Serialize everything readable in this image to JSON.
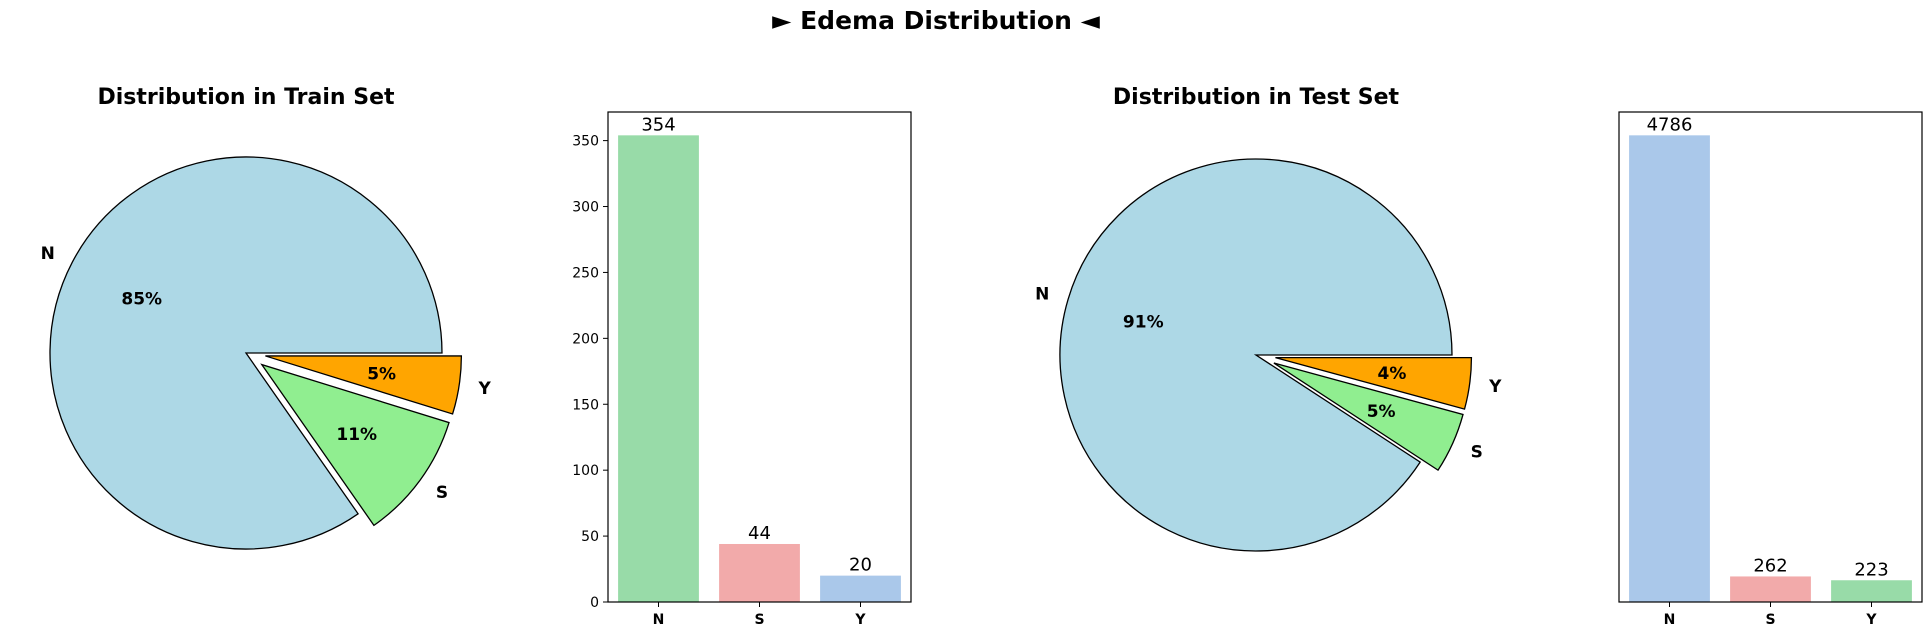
{
  "figure": {
    "suptitle": "► Edema Distribution ◄"
  },
  "chart_data": [
    {
      "type": "pie",
      "title": "Distribution in Train Set",
      "labels": [
        "N",
        "S",
        "Y"
      ],
      "values": [
        354,
        44,
        20
      ],
      "pct_labels": [
        "85%",
        "11%",
        "5%"
      ],
      "colors": [
        "#add8e6",
        "#90ee90",
        "#ffa500"
      ],
      "explode": [
        0,
        0.1,
        0.1
      ]
    },
    {
      "type": "bar",
      "categories": [
        "N",
        "S",
        "Y"
      ],
      "values": [
        354,
        44,
        20
      ],
      "data_labels": [
        "354",
        "44",
        "20"
      ],
      "colors": [
        "#98dba8",
        "#f2aaaa",
        "#aac8ea"
      ],
      "ylim": [
        0,
        371.7
      ],
      "yticks": [
        0,
        50,
        100,
        150,
        200,
        250,
        300,
        350
      ],
      "show_yticks": true,
      "xlabel": "",
      "ylabel": ""
    },
    {
      "type": "pie",
      "title": "Distribution in Test Set",
      "labels": [
        "N",
        "S",
        "Y"
      ],
      "values": [
        4786,
        262,
        223
      ],
      "pct_labels": [
        "91%",
        "5%",
        "4%"
      ],
      "colors": [
        "#add8e6",
        "#90ee90",
        "#ffa500"
      ],
      "explode": [
        0,
        0.1,
        0.1
      ]
    },
    {
      "type": "bar",
      "categories": [
        "N",
        "S",
        "Y"
      ],
      "values": [
        4786,
        262,
        223
      ],
      "data_labels": [
        "4786",
        "262",
        "223"
      ],
      "colors": [
        "#aac8ea",
        "#f2aaaa",
        "#98dba8"
      ],
      "ylim": [
        0,
        5025.3
      ],
      "yticks": [],
      "show_yticks": false,
      "xlabel": "",
      "ylabel": ""
    }
  ]
}
